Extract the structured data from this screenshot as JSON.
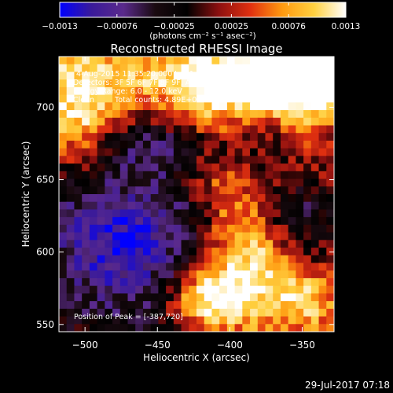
{
  "colorbar": {
    "colormap": [
      "#0000ff",
      "#3a1a9a",
      "#5a2a8c",
      "#1a0a10",
      "#000000",
      "#8c1010",
      "#e03010",
      "#ff9a10",
      "#ffd040",
      "#ffffff"
    ],
    "range": [
      -0.0013,
      0.0013
    ],
    "tick_labels": [
      "-0.0013",
      "-0.00076",
      "-0.00025",
      "0.00025",
      "0.00076",
      "0.0013"
    ],
    "unit_label": "(photons cm⁻² s⁻¹ asec⁻²)"
  },
  "chart_data": {
    "type": "heatmap",
    "title": "Reconstructed RHESSI Image",
    "xlabel": "Heliocentric X (arcsec)",
    "ylabel": "Heliocentric Y (arcsec)",
    "xlim": [
      -518,
      -328
    ],
    "ylim": [
      545,
      735
    ],
    "x_ticks": [
      -500,
      -450,
      -400,
      -350
    ],
    "y_ticks": [
      550,
      600,
      650,
      700
    ],
    "x_tick_labels": [
      "−500",
      "−450",
      "−400",
      "−350"
    ],
    "y_tick_labels": [
      "550",
      "600",
      "650",
      "700"
    ],
    "grid": false,
    "grid_cols": 36,
    "grid_rows": 36,
    "components": [
      {
        "x": -430,
        "y": 718,
        "sx": 95,
        "sy": 16,
        "amp": 0.0008,
        "rot": -0.1
      },
      {
        "x": -505,
        "y": 694,
        "sx": 20,
        "sy": 26,
        "amp": 0.0011,
        "rot": 0
      },
      {
        "x": -372,
        "y": 722,
        "sx": 40,
        "sy": 18,
        "amp": 0.0012,
        "rot": 0
      },
      {
        "x": -340,
        "y": 722,
        "sx": 22,
        "sy": 14,
        "amp": 0.0012,
        "rot": 0
      },
      {
        "x": -405,
        "y": 640,
        "sx": 16,
        "sy": 60,
        "amp": 0.0006,
        "rot": 0.25
      },
      {
        "x": -345,
        "y": 668,
        "sx": 14,
        "sy": 24,
        "amp": 0.0004,
        "rot": 0
      },
      {
        "x": -415,
        "y": 568,
        "sx": 18,
        "sy": 16,
        "amp": 0.0014,
        "rot": 0
      },
      {
        "x": -380,
        "y": 590,
        "sx": 20,
        "sy": 32,
        "amp": 0.0008,
        "rot": 0
      },
      {
        "x": -345,
        "y": 565,
        "sx": 18,
        "sy": 18,
        "amp": 0.0009,
        "rot": 0
      },
      {
        "x": -475,
        "y": 608,
        "sx": 42,
        "sy": 38,
        "amp": -0.0011,
        "rot": 0
      },
      {
        "x": -445,
        "y": 672,
        "sx": 38,
        "sy": 12,
        "amp": -0.0005,
        "rot": 0
      },
      {
        "x": -350,
        "y": 628,
        "sx": 16,
        "sy": 22,
        "amp": -0.0006,
        "rot": 0
      }
    ],
    "noise_amp": 0.0003,
    "annotations": {
      "time_range": "4-Aug-2015 11:35:20.000 to 11:45:20.000",
      "detectors": "Detectors: 3F 5F 6F 7F 8F 9F, Att 0",
      "energy": "Energy Range: 6.0 - 12.0 keV",
      "algorithm": "Clean",
      "counts": "Total counts: 4.89E+04",
      "peak": "Position of Peak = [-387,720]"
    }
  },
  "footer": {
    "timestamp": "29-Jul-2017 07:18"
  }
}
